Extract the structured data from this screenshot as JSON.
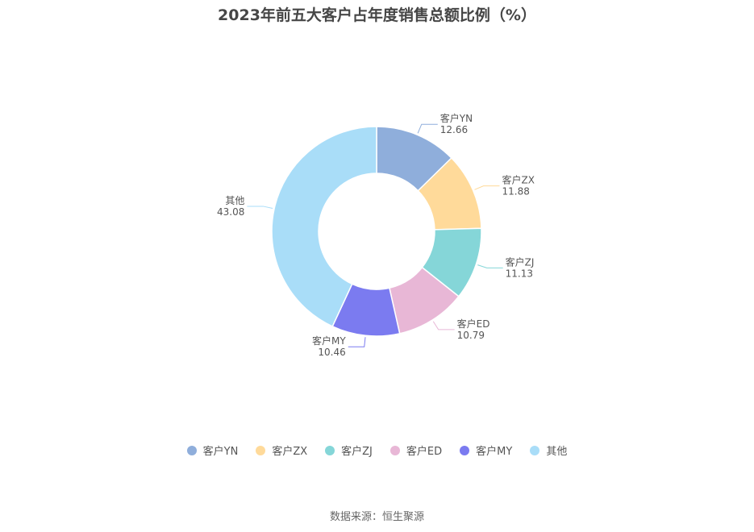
{
  "chart_data": {
    "type": "pie",
    "variant": "donut",
    "title": "2023年前五大客户占年度销售总额比例（%）",
    "slices": [
      {
        "name": "客户YN",
        "value": 12.66,
        "value_label": "12.66",
        "color": "#8FAEDB"
      },
      {
        "name": "客户ZX",
        "value": 11.88,
        "value_label": "11.88",
        "color": "#FFDA9A"
      },
      {
        "name": "客户ZJ",
        "value": 11.13,
        "value_label": "11.13",
        "color": "#85D6D8"
      },
      {
        "name": "客户ED",
        "value": 10.79,
        "value_label": "10.79",
        "color": "#E8B7D6"
      },
      {
        "name": "客户MY",
        "value": 10.46,
        "value_label": "10.46",
        "color": "#7B7BF0"
      },
      {
        "name": "其他",
        "value": 43.08,
        "value_label": "43.08",
        "color": "#A9DDF8"
      }
    ],
    "legend_position": "bottom"
  },
  "source": "数据来源：恒生聚源"
}
